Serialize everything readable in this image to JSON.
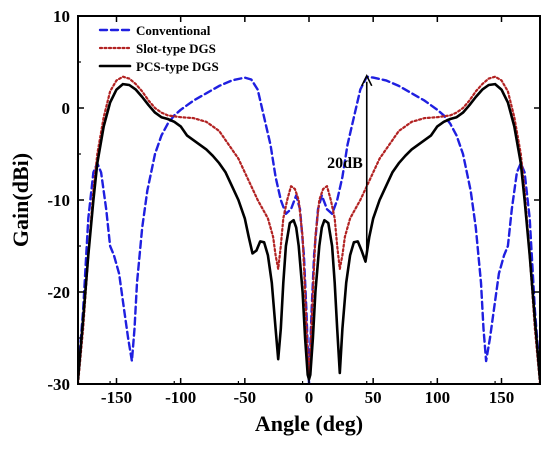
{
  "chart_data": {
    "type": "line",
    "title": "",
    "xlabel": "Angle (deg)",
    "ylabel": "Gain(dBi)",
    "xlim": [
      -180,
      180
    ],
    "ylim": [
      -30,
      10
    ],
    "xticks": [
      -150,
      -100,
      -50,
      0,
      50,
      100,
      150
    ],
    "yticks": [
      -30,
      -20,
      -10,
      0,
      10
    ],
    "grid": false,
    "legend_position": "top-left",
    "annotation": {
      "text": "20dB",
      "x_from": 45,
      "y_from": -16,
      "x_to": 45,
      "y_to": 3.5
    },
    "series": [
      {
        "name": "Conventional",
        "color": "#1f1fe0",
        "style": "dashed",
        "points": [
          [
            -180,
            -29
          ],
          [
            -176,
            -22
          ],
          [
            -172,
            -12
          ],
          [
            -168,
            -7
          ],
          [
            -165,
            -6
          ],
          [
            -162,
            -7
          ],
          [
            -158,
            -11
          ],
          [
            -155,
            -15
          ],
          [
            -152,
            -16
          ],
          [
            -148,
            -18
          ],
          [
            -144,
            -22
          ],
          [
            -141,
            -25
          ],
          [
            -138,
            -27.5
          ],
          [
            -136,
            -24
          ],
          [
            -134,
            -19
          ],
          [
            -130,
            -13
          ],
          [
            -126,
            -9
          ],
          [
            -120,
            -5
          ],
          [
            -115,
            -3
          ],
          [
            -110,
            -1.7
          ],
          [
            -105,
            -0.8
          ],
          [
            -100,
            -0.2
          ],
          [
            -95,
            0.3
          ],
          [
            -90,
            0.8
          ],
          [
            -80,
            1.6
          ],
          [
            -70,
            2.4
          ],
          [
            -60,
            3.0
          ],
          [
            -50,
            3.3
          ],
          [
            -45,
            3.1
          ],
          [
            -40,
            2.0
          ],
          [
            -35,
            -1
          ],
          [
            -30,
            -4
          ],
          [
            -26,
            -7.5
          ],
          [
            -22,
            -10
          ],
          [
            -18,
            -11.5
          ],
          [
            -14,
            -11
          ],
          [
            -10,
            -9.5
          ],
          [
            -7,
            -11
          ],
          [
            -4,
            -16
          ],
          [
            -2,
            -22
          ],
          [
            0,
            -30
          ],
          [
            2,
            -22
          ],
          [
            4,
            -16
          ],
          [
            7,
            -11
          ],
          [
            10,
            -9.5
          ],
          [
            14,
            -11
          ],
          [
            18,
            -11.5
          ],
          [
            22,
            -10
          ],
          [
            26,
            -7.5
          ],
          [
            30,
            -4
          ],
          [
            35,
            -1
          ],
          [
            40,
            2.0
          ],
          [
            45,
            3.4
          ],
          [
            50,
            3.3
          ],
          [
            60,
            3.0
          ],
          [
            70,
            2.4
          ],
          [
            80,
            1.6
          ],
          [
            90,
            0.8
          ],
          [
            95,
            0.3
          ],
          [
            100,
            -0.2
          ],
          [
            105,
            -0.8
          ],
          [
            110,
            -1.7
          ],
          [
            115,
            -3
          ],
          [
            120,
            -5
          ],
          [
            126,
            -9
          ],
          [
            130,
            -13
          ],
          [
            134,
            -19
          ],
          [
            136,
            -24
          ],
          [
            138,
            -27.5
          ],
          [
            141,
            -25
          ],
          [
            144,
            -22
          ],
          [
            148,
            -18
          ],
          [
            152,
            -16
          ],
          [
            155,
            -15
          ],
          [
            158,
            -11
          ],
          [
            162,
            -7
          ],
          [
            165,
            -6
          ],
          [
            168,
            -7
          ],
          [
            172,
            -12
          ],
          [
            176,
            -22
          ],
          [
            180,
            -29
          ]
        ]
      },
      {
        "name": "Slot-type DGS",
        "color": "#b22222",
        "style": "dotted",
        "points": [
          [
            -180,
            -30
          ],
          [
            -176,
            -24
          ],
          [
            -172,
            -16
          ],
          [
            -168,
            -9
          ],
          [
            -165,
            -5
          ],
          [
            -160,
            -1
          ],
          [
            -155,
            1.8
          ],
          [
            -150,
            3.0
          ],
          [
            -145,
            3.4
          ],
          [
            -140,
            3.2
          ],
          [
            -135,
            2.6
          ],
          [
            -130,
            1.8
          ],
          [
            -125,
            0.8
          ],
          [
            -120,
            0
          ],
          [
            -115,
            -0.5
          ],
          [
            -110,
            -0.8
          ],
          [
            -100,
            -1
          ],
          [
            -90,
            -1.1
          ],
          [
            -85,
            -1.3
          ],
          [
            -80,
            -1.5
          ],
          [
            -75,
            -2
          ],
          [
            -70,
            -2.5
          ],
          [
            -65,
            -3.5
          ],
          [
            -60,
            -4.5
          ],
          [
            -55,
            -5.5
          ],
          [
            -50,
            -7
          ],
          [
            -45,
            -8.5
          ],
          [
            -40,
            -10
          ],
          [
            -36,
            -11
          ],
          [
            -32,
            -12
          ],
          [
            -28,
            -14
          ],
          [
            -26,
            -16
          ],
          [
            -24,
            -17.5
          ],
          [
            -22,
            -15
          ],
          [
            -20,
            -12
          ],
          [
            -17,
            -10
          ],
          [
            -14,
            -8.5
          ],
          [
            -11,
            -8.8
          ],
          [
            -8,
            -10
          ],
          [
            -5,
            -14
          ],
          [
            -3,
            -20
          ],
          [
            -1,
            -27
          ],
          [
            0,
            -29
          ],
          [
            1,
            -27
          ],
          [
            3,
            -20
          ],
          [
            5,
            -14
          ],
          [
            8,
            -10
          ],
          [
            11,
            -8.8
          ],
          [
            14,
            -8.5
          ],
          [
            17,
            -10
          ],
          [
            20,
            -12
          ],
          [
            22,
            -15
          ],
          [
            24,
            -17.5
          ],
          [
            26,
            -16
          ],
          [
            28,
            -14
          ],
          [
            32,
            -12
          ],
          [
            36,
            -11
          ],
          [
            40,
            -10
          ],
          [
            45,
            -8.5
          ],
          [
            50,
            -7
          ],
          [
            55,
            -5.5
          ],
          [
            60,
            -4.5
          ],
          [
            65,
            -3.5
          ],
          [
            70,
            -2.5
          ],
          [
            75,
            -2
          ],
          [
            80,
            -1.5
          ],
          [
            85,
            -1.3
          ],
          [
            90,
            -1.1
          ],
          [
            100,
            -1
          ],
          [
            110,
            -0.8
          ],
          [
            115,
            -0.5
          ],
          [
            120,
            0
          ],
          [
            125,
            0.8
          ],
          [
            130,
            1.8
          ],
          [
            135,
            2.6
          ],
          [
            140,
            3.2
          ],
          [
            145,
            3.4
          ],
          [
            150,
            3.0
          ],
          [
            155,
            1.8
          ],
          [
            160,
            -1
          ],
          [
            165,
            -5
          ],
          [
            168,
            -9
          ],
          [
            172,
            -16
          ],
          [
            176,
            -24
          ],
          [
            180,
            -30
          ]
        ]
      },
      {
        "name": "PCS-type DGS",
        "color": "#000000",
        "style": "solid",
        "points": [
          [
            -180,
            -29.5
          ],
          [
            -176,
            -23
          ],
          [
            -172,
            -16
          ],
          [
            -168,
            -10
          ],
          [
            -165,
            -6
          ],
          [
            -160,
            -2
          ],
          [
            -155,
            0.6
          ],
          [
            -150,
            2.0
          ],
          [
            -145,
            2.6
          ],
          [
            -140,
            2.5
          ],
          [
            -135,
            2.0
          ],
          [
            -130,
            1.2
          ],
          [
            -125,
            0.3
          ],
          [
            -120,
            -0.5
          ],
          [
            -115,
            -1
          ],
          [
            -110,
            -1.2
          ],
          [
            -105,
            -1.5
          ],
          [
            -100,
            -2
          ],
          [
            -95,
            -3
          ],
          [
            -90,
            -3.5
          ],
          [
            -85,
            -4
          ],
          [
            -80,
            -4.5
          ],
          [
            -75,
            -5.2
          ],
          [
            -70,
            -6
          ],
          [
            -65,
            -7
          ],
          [
            -60,
            -8.5
          ],
          [
            -55,
            -10
          ],
          [
            -50,
            -12
          ],
          [
            -47,
            -14
          ],
          [
            -44,
            -15.8
          ],
          [
            -41,
            -15.5
          ],
          [
            -38,
            -14.5
          ],
          [
            -35,
            -14.6
          ],
          [
            -32,
            -16
          ],
          [
            -29,
            -19
          ],
          [
            -26,
            -24
          ],
          [
            -24,
            -27.3
          ],
          [
            -22,
            -24
          ],
          [
            -20,
            -19
          ],
          [
            -18,
            -15
          ],
          [
            -15,
            -12.5
          ],
          [
            -12,
            -12.2
          ],
          [
            -10,
            -13
          ],
          [
            -8,
            -15
          ],
          [
            -5,
            -20
          ],
          [
            -3,
            -25
          ],
          [
            -1,
            -29
          ],
          [
            0,
            -29.5
          ],
          [
            1,
            -29
          ],
          [
            3,
            -25
          ],
          [
            5,
            -20
          ],
          [
            8,
            -15
          ],
          [
            10,
            -13
          ],
          [
            12,
            -12.2
          ],
          [
            15,
            -12.5
          ],
          [
            18,
            -15
          ],
          [
            20,
            -19
          ],
          [
            22,
            -24
          ],
          [
            24,
            -28.8
          ],
          [
            26,
            -24
          ],
          [
            29,
            -19
          ],
          [
            32,
            -16
          ],
          [
            35,
            -14.6
          ],
          [
            38,
            -14.5
          ],
          [
            41,
            -15.5
          ],
          [
            44,
            -16.7
          ],
          [
            47,
            -14
          ],
          [
            50,
            -12
          ],
          [
            55,
            -10
          ],
          [
            60,
            -8.5
          ],
          [
            65,
            -7
          ],
          [
            70,
            -6
          ],
          [
            75,
            -5.2
          ],
          [
            80,
            -4.5
          ],
          [
            85,
            -4
          ],
          [
            90,
            -3.5
          ],
          [
            95,
            -3
          ],
          [
            100,
            -2
          ],
          [
            105,
            -1.5
          ],
          [
            110,
            -1.2
          ],
          [
            115,
            -1
          ],
          [
            120,
            -0.5
          ],
          [
            125,
            0.3
          ],
          [
            130,
            1.2
          ],
          [
            135,
            2.0
          ],
          [
            140,
            2.5
          ],
          [
            145,
            2.6
          ],
          [
            150,
            2.0
          ],
          [
            155,
            0.6
          ],
          [
            160,
            -2
          ],
          [
            165,
            -6
          ],
          [
            168,
            -10
          ],
          [
            172,
            -16
          ],
          [
            176,
            -23
          ],
          [
            180,
            -29.5
          ]
        ]
      }
    ]
  }
}
